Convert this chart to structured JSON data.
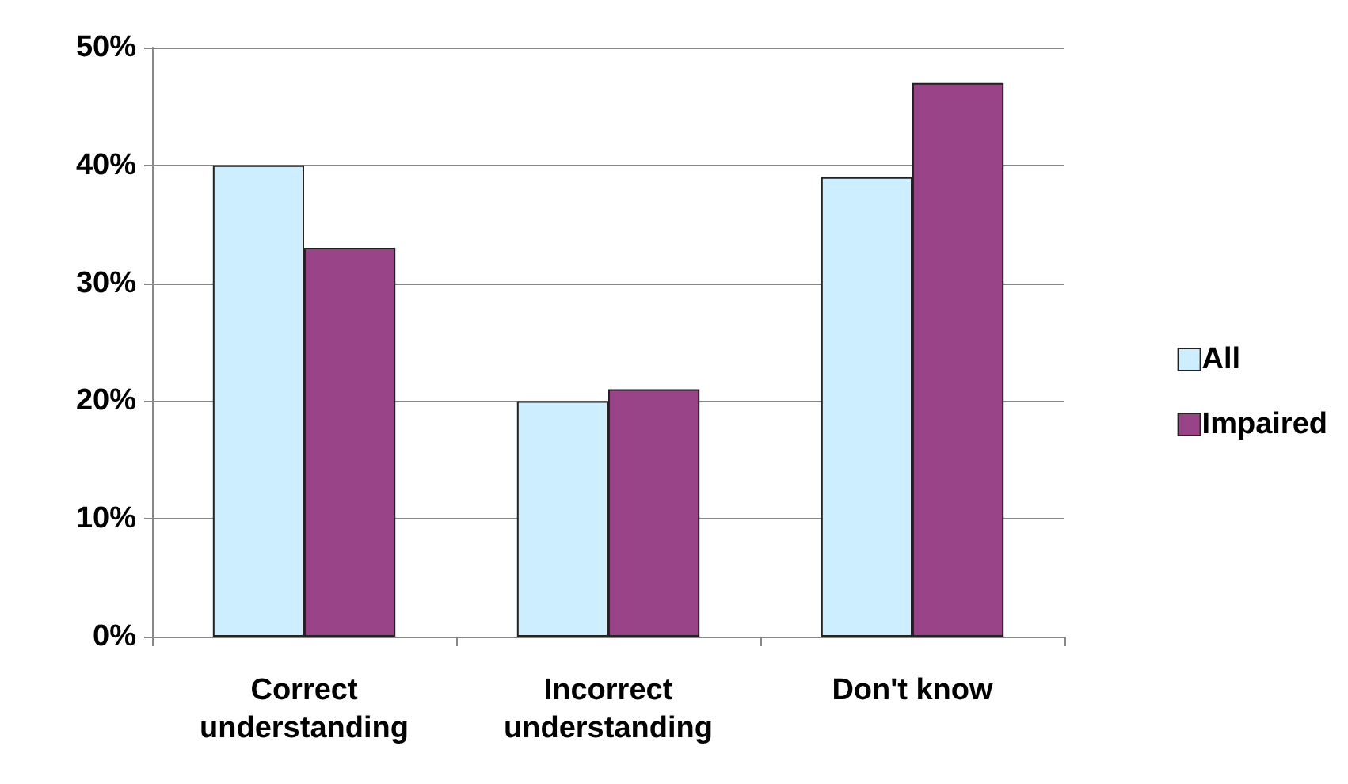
{
  "chart_data": {
    "type": "bar",
    "categories": [
      "Correct\nunderstanding",
      "Incorrect\nunderstanding",
      "Don't know"
    ],
    "series": [
      {
        "name": "All",
        "color": "#cceeff",
        "values": [
          40,
          20,
          39
        ]
      },
      {
        "name": "Impaired",
        "color": "#994488",
        "values": [
          33,
          21,
          47
        ]
      }
    ],
    "ylim": [
      0,
      50
    ],
    "yticks": [
      {
        "value": 0,
        "label": "0%"
      },
      {
        "value": 10,
        "label": "10%"
      },
      {
        "value": 20,
        "label": "20%"
      },
      {
        "value": 30,
        "label": "30%"
      },
      {
        "value": 40,
        "label": "40%"
      },
      {
        "value": 50,
        "label": "50%"
      }
    ],
    "grid": "y",
    "legend": "right"
  }
}
